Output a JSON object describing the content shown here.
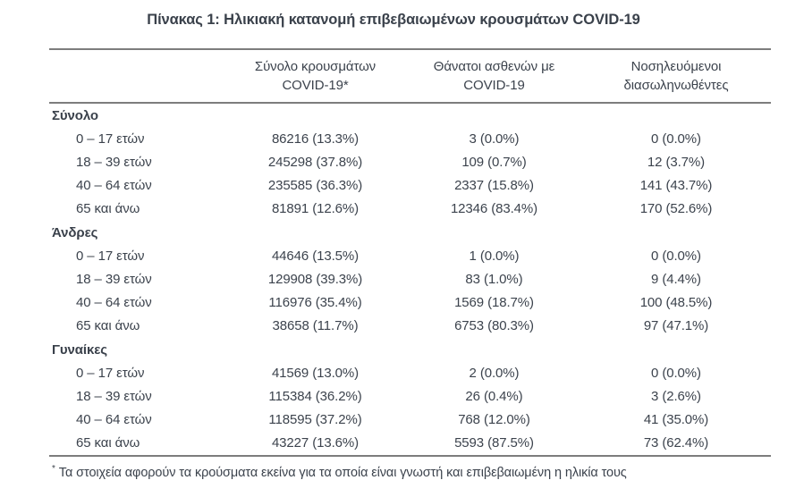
{
  "title": "Πίνακας 1: Ηλικιακή κατανομή επιβεβαιωμένων κρουσμάτων COVID-19",
  "colors": {
    "background": "#ffffff",
    "text": "#3c434d",
    "rule_line": "#7d7d7d"
  },
  "table": {
    "headers": {
      "cases_line1": "Σύνολο κρουσμάτων",
      "cases_line2": "COVID-19*",
      "deaths_line1": "Θάνατοι ασθενών με",
      "deaths_line2": "COVID-19",
      "intubated_line1": "Νοσηλευόμενοι",
      "intubated_line2": "διασωληνωθέντες"
    },
    "sections": [
      {
        "label": "Σύνολο",
        "rows": [
          {
            "age": "0 – 17 ετών",
            "cases": "86216 (13.3%)",
            "deaths": "3 (0.0%)",
            "intubated": "0 (0.0%)"
          },
          {
            "age": "18 – 39 ετών",
            "cases": "245298 (37.8%)",
            "deaths": "109 (0.7%)",
            "intubated": "12 (3.7%)"
          },
          {
            "age": "40 – 64 ετών",
            "cases": "235585 (36.3%)",
            "deaths": "2337 (15.8%)",
            "intubated": "141 (43.7%)"
          },
          {
            "age": "65 και άνω",
            "cases": "81891 (12.6%)",
            "deaths": "12346 (83.4%)",
            "intubated": "170 (52.6%)"
          }
        ]
      },
      {
        "label": "Άνδρες",
        "rows": [
          {
            "age": "0 – 17 ετών",
            "cases": "44646 (13.5%)",
            "deaths": "1 (0.0%)",
            "intubated": "0 (0.0%)"
          },
          {
            "age": "18 – 39 ετών",
            "cases": "129908 (39.3%)",
            "deaths": "83 (1.0%)",
            "intubated": "9 (4.4%)"
          },
          {
            "age": "40 – 64 ετών",
            "cases": "116976 (35.4%)",
            "deaths": "1569 (18.7%)",
            "intubated": "100 (48.5%)"
          },
          {
            "age": "65 και άνω",
            "cases": "38658 (11.7%)",
            "deaths": "6753 (80.3%)",
            "intubated": "97 (47.1%)"
          }
        ]
      },
      {
        "label": "Γυναίκες",
        "rows": [
          {
            "age": "0 – 17 ετών",
            "cases": "41569 (13.0%)",
            "deaths": "2 (0.0%)",
            "intubated": "0 (0.0%)"
          },
          {
            "age": "18 – 39 ετών",
            "cases": "115384 (36.2%)",
            "deaths": "26 (0.4%)",
            "intubated": "3 (2.6%)"
          },
          {
            "age": "40 – 64 ετών",
            "cases": "118595 (37.2%)",
            "deaths": "768 (12.0%)",
            "intubated": "41 (35.0%)"
          },
          {
            "age": "65 και άνω",
            "cases": "43227 (13.6%)",
            "deaths": "5593 (87.5%)",
            "intubated": "73 (62.4%)"
          }
        ]
      }
    ],
    "footnote_marker": "*",
    "footnote_text": "Τα στοιχεία αφορούν τα κρούσματα εκείνα για τα οποία είναι γνωστή και επιβεβαιωμένη η ηλικία τους"
  }
}
